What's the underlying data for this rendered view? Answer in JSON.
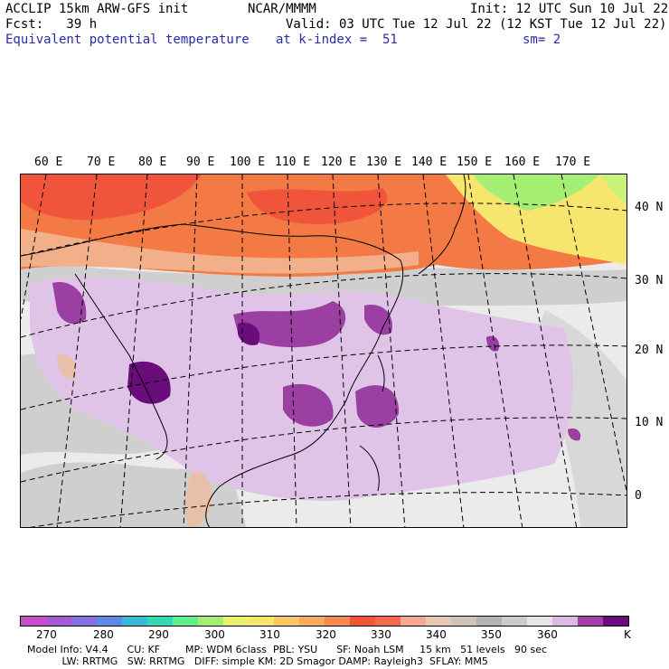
{
  "header": {
    "line1_left": "ACCLIP 15km ARW-GFS init",
    "line1_center": "NCAR/MMMM",
    "line1_right": "Init: 12 UTC Sun 10 Jul 22",
    "line2_left": "Fcst:   39 h",
    "line2_right": "Valid: 03 UTC Tue 12 Jul 22 (12 KST Tue 12 Jul 22)",
    "line3_left": "Equivalent potential temperature",
    "line3_center": "at k-index =  51",
    "line3_right": "sm= 2"
  },
  "map": {
    "lon_labels": [
      "60 E",
      "70 E",
      "80 E",
      "90 E",
      "100 E",
      "110 E",
      "120 E",
      "130 E",
      "140 E",
      "150 E",
      "160 E",
      "170 E"
    ],
    "lat_labels": [
      "40 N",
      "30 N",
      "20 N",
      "10 N",
      "0"
    ],
    "colors": {
      "ocean_light": "#ebebeb",
      "grey_mid": "#cfcfcf",
      "grey_dark": "#b4b4b4",
      "lavender": "#e0c4e8",
      "purple": "#9b3fa3",
      "dark_purple": "#6a0d7a",
      "tan": "#e6c0a8",
      "peach": "#f2b08a",
      "orange": "#f47a45",
      "red_orange": "#f0553c",
      "yellow": "#f6e66e",
      "green": "#a4ee74"
    }
  },
  "colorbar": {
    "colors": [
      "#c94fc9",
      "#a55ad3",
      "#8470e0",
      "#5f8ae5",
      "#3ab8d6",
      "#34d8b4",
      "#5fee8e",
      "#a4ee74",
      "#e8f26e",
      "#f6e66e",
      "#f9c864",
      "#f7a95e",
      "#f48a50",
      "#f0553c",
      "#f16a4e",
      "#f2a892",
      "#e7c9b4",
      "#cfc4ba",
      "#b4b4b4",
      "#cccccc",
      "#e6e6e6",
      "#dbbbe3",
      "#a040a8",
      "#6a0d7a"
    ],
    "tick_labels": [
      "270",
      "280",
      "290",
      "300",
      "310",
      "320",
      "330",
      "340",
      "350",
      "360",
      "K"
    ]
  },
  "footer": {
    "line1": "Model Info: V4.4      CU: KF        MP: WDM 6class  PBL: YSU      SF: Noah LSM     15 km   51 levels   90 sec",
    "line2": "           LW: RRTMG   SW: RRTMG   DIFF: simple KM: 2D Smagor DAMP: Rayleigh3  SFLAY: MM5"
  }
}
